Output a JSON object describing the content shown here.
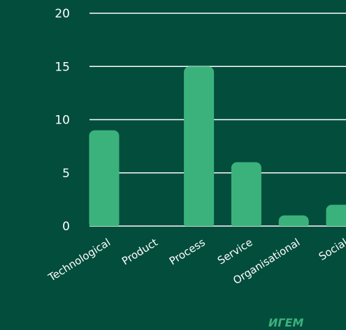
{
  "chart_data": {
    "type": "bar",
    "categories": [
      "Technological",
      "Product",
      "Process",
      "Service",
      "Organisational",
      "Social"
    ],
    "values": [
      9,
      0,
      15,
      6,
      1,
      2
    ],
    "title": "",
    "xlabel": "",
    "ylabel": "",
    "ylim": [
      0,
      20
    ],
    "yticks": [
      0,
      5,
      10,
      15,
      20
    ],
    "grid": true,
    "legend": "none",
    "colors": {
      "background": "#034d3c",
      "bar": "#3bb27c",
      "gridline": "#ffffff",
      "text": "#ffffff"
    }
  },
  "watermark": {
    "text": "ИГЕМ"
  }
}
